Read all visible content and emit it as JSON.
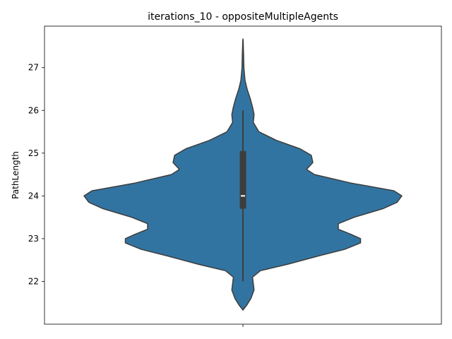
{
  "chart_data": {
    "type": "violin",
    "title": "iterations_10 - oppositeMultipleAgents",
    "xlabel": "",
    "ylabel": "PathLength",
    "ylim": [
      21.0,
      27.97
    ],
    "yticks": [
      22,
      23,
      24,
      25,
      26,
      27
    ],
    "grid": false,
    "colors": {
      "body": "#3274a1",
      "edge": "#3d3d3d",
      "box": "#3d3d3d",
      "median": "#ffffff"
    },
    "box": {
      "whisker_low": 22,
      "q1": 23.7,
      "median": 24,
      "q3": 25.05,
      "whisker_high": 26
    },
    "density": [
      [
        21.33,
        0.0
      ],
      [
        21.45,
        0.025
      ],
      [
        21.6,
        0.05
      ],
      [
        21.8,
        0.07
      ],
      [
        21.95,
        0.065
      ],
      [
        22.1,
        0.06
      ],
      [
        22.25,
        0.11
      ],
      [
        22.4,
        0.28
      ],
      [
        22.6,
        0.48
      ],
      [
        22.75,
        0.64
      ],
      [
        22.9,
        0.74
      ],
      [
        23.0,
        0.74
      ],
      [
        23.1,
        0.68
      ],
      [
        23.22,
        0.6
      ],
      [
        23.35,
        0.6
      ],
      [
        23.5,
        0.7
      ],
      [
        23.7,
        0.88
      ],
      [
        23.85,
        0.97
      ],
      [
        24.0,
        1.0
      ],
      [
        24.12,
        0.95
      ],
      [
        24.3,
        0.68
      ],
      [
        24.5,
        0.45
      ],
      [
        24.62,
        0.4
      ],
      [
        24.78,
        0.44
      ],
      [
        24.95,
        0.43
      ],
      [
        25.1,
        0.36
      ],
      [
        25.3,
        0.21
      ],
      [
        25.5,
        0.1
      ],
      [
        25.72,
        0.065
      ],
      [
        25.9,
        0.07
      ],
      [
        26.05,
        0.062
      ],
      [
        26.25,
        0.048
      ],
      [
        26.5,
        0.026
      ],
      [
        26.7,
        0.013
      ],
      [
        27.0,
        0.0058
      ],
      [
        27.25,
        0.0044
      ],
      [
        27.45,
        0.0026
      ],
      [
        27.62,
        0.0013
      ],
      [
        27.67,
        0.0
      ]
    ]
  }
}
